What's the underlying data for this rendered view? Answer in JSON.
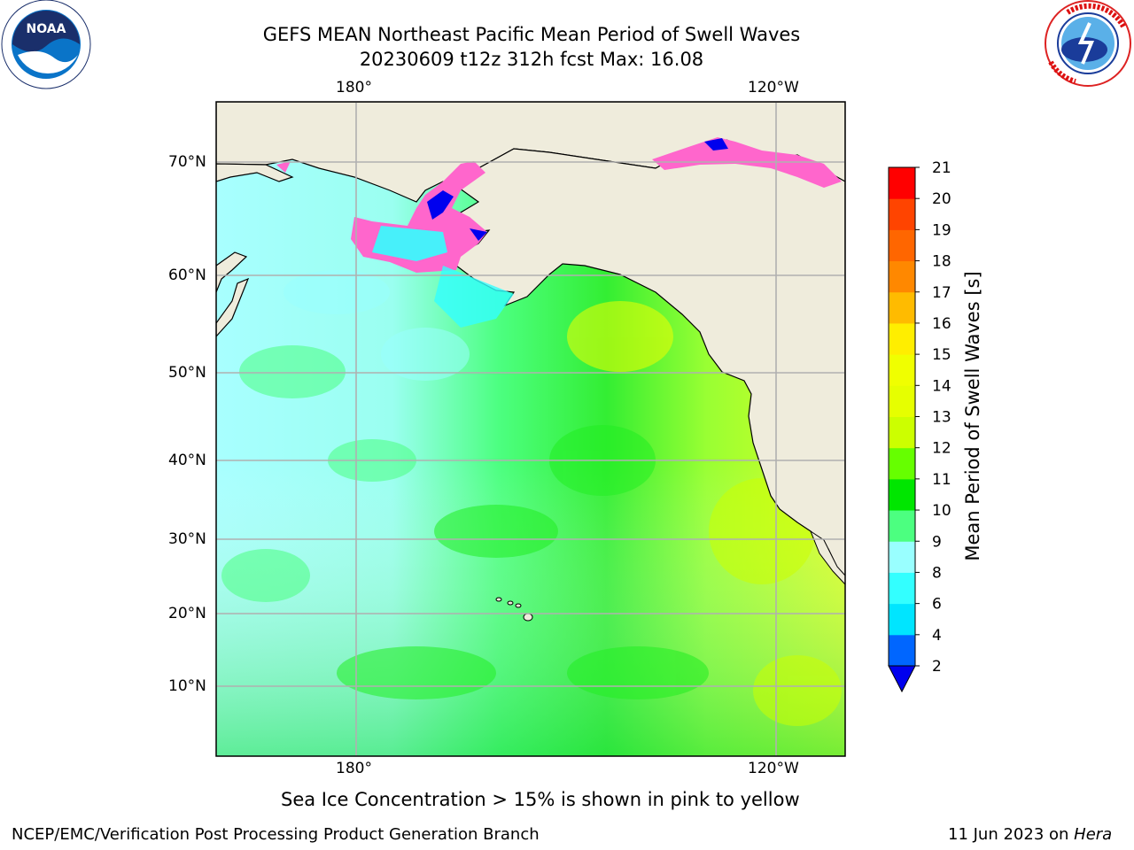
{
  "header": {
    "title_line1": "GEFS MEAN Northeast Pacific Mean Period of Swell Waves",
    "title_line2": "20230609 t12z 312h fcst   Max: 16.08"
  },
  "logos": {
    "noaa_text": "NOAA",
    "noaa_ring": "NATIONAL OCEANIC AND ATMOSPHERIC ADMINISTRATION · U.S. DEPARTMENT OF COMMERCE",
    "nws_ring": "NATIONAL WEATHER SERVICE"
  },
  "map": {
    "lon_labels_top": [
      "180°",
      "120°W"
    ],
    "lon_labels_bottom": [
      "180°",
      "120°W"
    ],
    "lat_labels": [
      "70°N",
      "60°N",
      "50°N",
      "40°N",
      "30°N",
      "20°N",
      "10°N"
    ],
    "ocean_fill_note": "Sea Ice Concentration > 15% is shown in pink to yellow"
  },
  "colorbar": {
    "label": "Mean Period of Swell Waves [s]",
    "ticks": [
      "2",
      "4",
      "6",
      "8",
      "9",
      "10",
      "11",
      "12",
      "13",
      "14",
      "15",
      "16",
      "17",
      "18",
      "19",
      "20",
      "21"
    ],
    "colors": [
      "#0066ff",
      "#00e5ff",
      "#33ffff",
      "#99ffff",
      "#4cff80",
      "#00e600",
      "#66ff00",
      "#ccff00",
      "#e6ff00",
      "#f0ff00",
      "#ffee00",
      "#ffbb00",
      "#ff8800",
      "#ff6600",
      "#ff4400",
      "#ff0000"
    ],
    "extend_color": "#0000ee"
  },
  "footer": {
    "left": "NCEP/EMC/Verification Post Processing Product Generation Branch",
    "right_date": "11 Jun 2023 on ",
    "right_host": "Hera"
  },
  "colors": {
    "land": "#efecdc",
    "grid": "#b0b0b0",
    "ice_pink": "#ff66cc",
    "ice_blue": "#0000ee"
  }
}
